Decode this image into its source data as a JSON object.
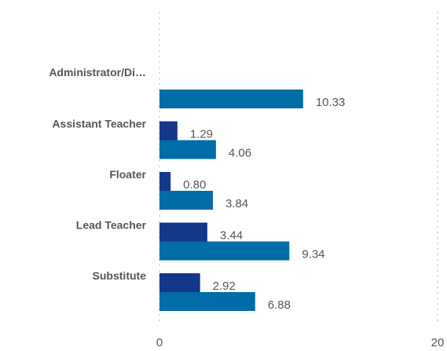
{
  "chart_data": {
    "type": "bar",
    "orientation": "horizontal",
    "categories": [
      "Administrator/Di…",
      "Assistant Teacher",
      "Floater",
      "Lead Teacher",
      "Substitute"
    ],
    "series": [
      {
        "values": [
          null,
          1.29,
          0.8,
          3.44,
          2.92
        ],
        "labels": [
          "",
          "1.29",
          "0.80",
          "3.44",
          "2.92"
        ]
      },
      {
        "values": [
          10.33,
          4.06,
          3.84,
          9.34,
          6.88
        ],
        "labels": [
          "10.33",
          "4.06",
          "3.84",
          "9.34",
          "6.88"
        ]
      }
    ],
    "xlim": [
      0,
      20
    ],
    "xticks": [
      "0",
      "20"
    ],
    "grid": "vertical dotted",
    "legend": "none",
    "colors": [
      "#13378a",
      "#006ca8"
    ]
  }
}
